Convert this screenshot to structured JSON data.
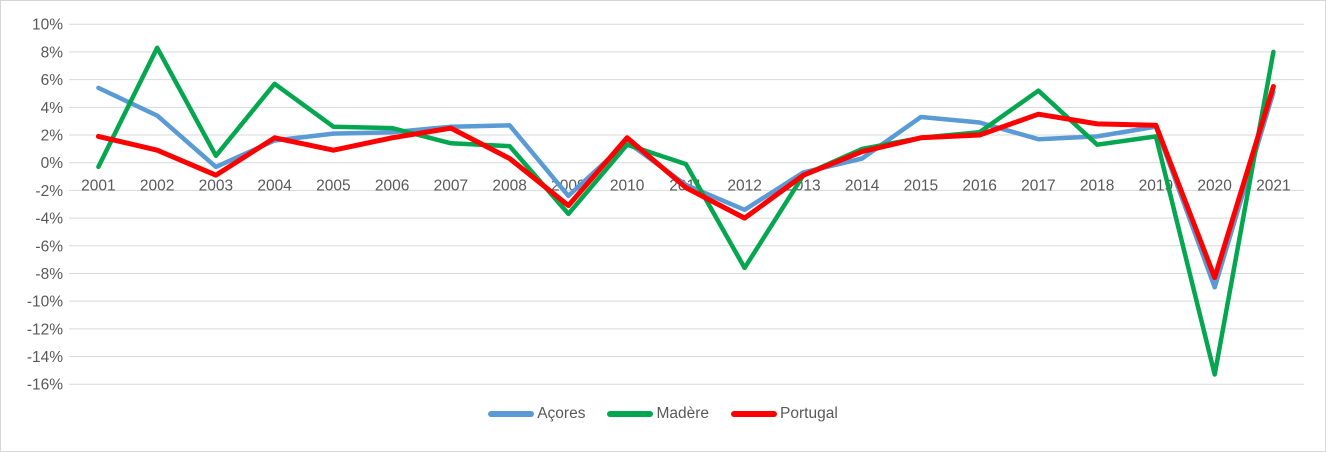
{
  "chart_data": {
    "type": "line",
    "categories": [
      "2001",
      "2002",
      "2003",
      "2004",
      "2005",
      "2006",
      "2007",
      "2008",
      "2009",
      "2010",
      "2011",
      "2012",
      "2013",
      "2014",
      "2015",
      "2016",
      "2017",
      "2018",
      "2019",
      "2020",
      "2021"
    ],
    "series": [
      {
        "name": "Açores",
        "color": "#5B9BD5",
        "values": [
          5.4,
          3.4,
          -0.3,
          1.6,
          2.1,
          2.2,
          2.6,
          2.7,
          -2.4,
          1.5,
          -1.6,
          -3.4,
          -0.7,
          0.3,
          3.3,
          2.9,
          1.7,
          1.9,
          2.6,
          -9.0,
          5.1
        ]
      },
      {
        "name": "Madère",
        "color": "#04A64F",
        "values": [
          -0.3,
          8.3,
          0.5,
          5.7,
          2.6,
          2.5,
          1.4,
          1.2,
          -3.7,
          1.3,
          -0.1,
          -7.6,
          -0.9,
          1.0,
          1.8,
          2.2,
          5.2,
          1.3,
          1.9,
          -15.3,
          8.0
        ]
      },
      {
        "name": "Portugal",
        "color": "#FF0000",
        "values": [
          1.9,
          0.9,
          -0.9,
          1.8,
          0.9,
          1.8,
          2.5,
          0.3,
          -3.1,
          1.8,
          -1.8,
          -4.0,
          -0.9,
          0.8,
          1.8,
          2.0,
          3.5,
          2.8,
          2.7,
          -8.3,
          5.5
        ]
      }
    ],
    "title": "",
    "xlabel": "",
    "ylabel": "",
    "ylim": [
      -16,
      10
    ],
    "ytick_step": 2,
    "y_tick_labels": [
      "10%",
      "8%",
      "6%",
      "4%",
      "2%",
      "0%",
      "-2%",
      "-4%",
      "-6%",
      "-8%",
      "-10%",
      "-12%",
      "-14%",
      "-16%"
    ],
    "grid": "horizontal",
    "legend_position": "bottom"
  },
  "style": {
    "gridline_color": "#D9D9D9",
    "label_color": "#595959",
    "background": "#FFFFFF"
  }
}
